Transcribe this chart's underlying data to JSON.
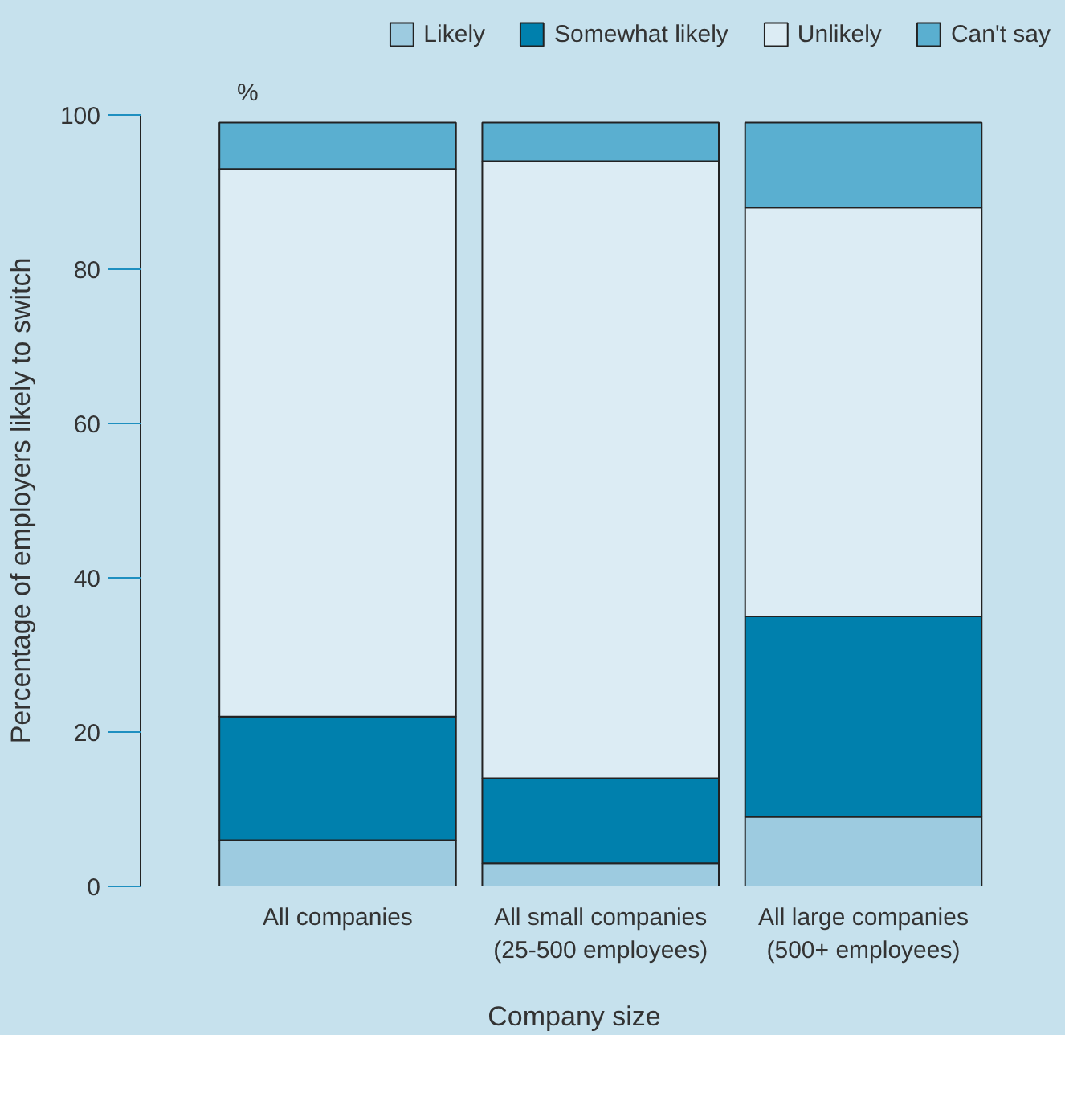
{
  "chart_data": {
    "type": "bar",
    "stacked": true,
    "xlabel": "Company size",
    "ylabel": "Percentage of employers likely to switch",
    "annotations": [
      "%"
    ],
    "categories": [
      "All companies",
      "All small companies\n(25-500 employees)",
      "All large companies\n(500+ employees)"
    ],
    "series": [
      {
        "name": "Likely",
        "color": "#9dcbe0",
        "values": [
          6,
          3,
          9
        ]
      },
      {
        "name": "Somewhat likely",
        "color": "#0080ad",
        "values": [
          16,
          11,
          26
        ]
      },
      {
        "name": "Unlikely",
        "color": "#dcecf4",
        "values": [
          71,
          80,
          53
        ]
      },
      {
        "name": "Can't say",
        "color": "#5aafd0",
        "values": [
          6,
          5,
          11
        ]
      }
    ],
    "ylim": [
      0,
      100
    ],
    "yticks": [
      0,
      20,
      40,
      60,
      80,
      100
    ],
    "legend": "top"
  }
}
